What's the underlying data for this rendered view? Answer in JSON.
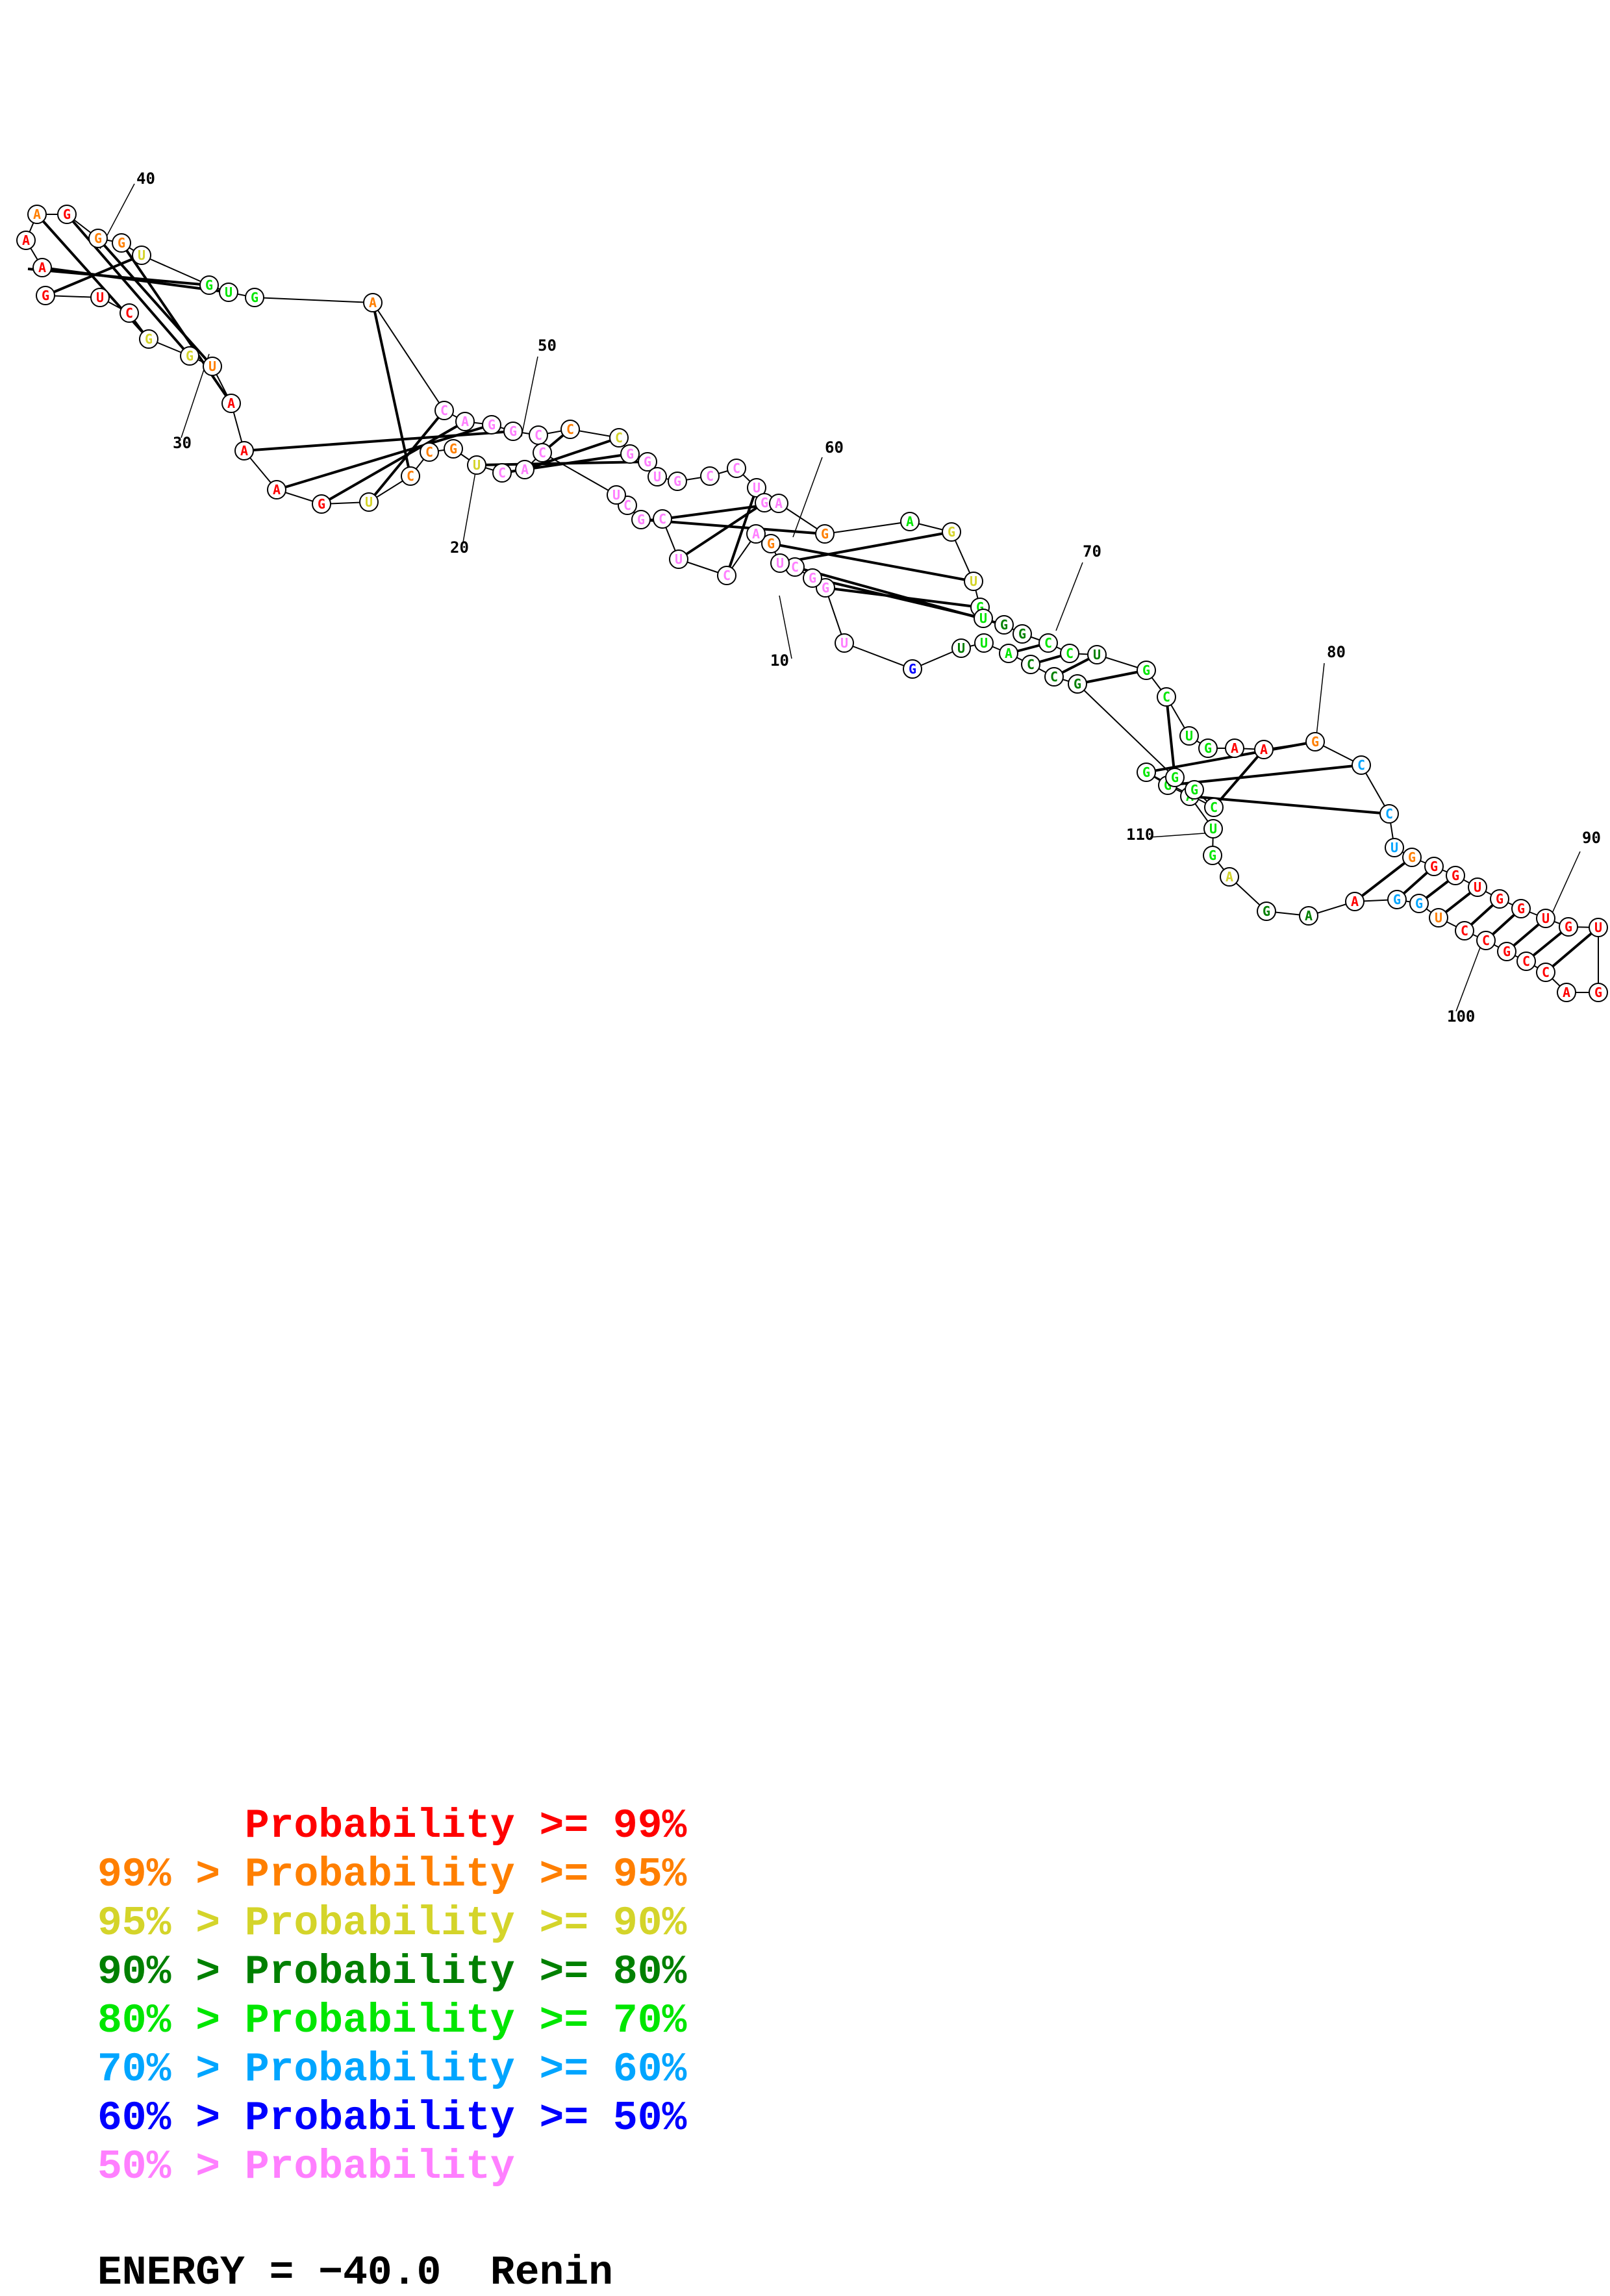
{
  "title_line": {
    "energy_label": "ENERGY = ",
    "energy_value": "−40.0",
    "name": "Renin"
  },
  "position_labels": [
    "10",
    "20",
    "30",
    "40",
    "50",
    "60",
    "70",
    "80",
    "90",
    "100",
    "110"
  ],
  "legend": [
    {
      "text": "      Probability >= 99%",
      "color": "#ff0000"
    },
    {
      "text": "99% > Probability >= 95%",
      "color": "#ff7f00"
    },
    {
      "text": "95% > Probability >= 90%",
      "color": "#d4d42a"
    },
    {
      "text": "90% > Probability >= 80%",
      "color": "#008000"
    },
    {
      "text": "80% > Probability >= 70%",
      "color": "#00e600"
    },
    {
      "text": "70% > Probability >= 60%",
      "color": "#00a5ff"
    },
    {
      "text": "60% > Probability >= 50%",
      "color": "#0000ff"
    },
    {
      "text": "50% > Probability",
      "color": "#ff7fff"
    }
  ],
  "nucleotides": [
    {
      "b": "A",
      "c": "#ff0000"
    },
    {
      "b": "A",
      "c": "#ff0000"
    },
    {
      "b": "A",
      "c": "#ff7f00"
    },
    {
      "b": "G",
      "c": "#ff0000"
    },
    {
      "b": "G",
      "c": "#ff7f00"
    },
    {
      "b": "G",
      "c": "#ff7f00"
    },
    {
      "b": "U",
      "c": "#d4d42a"
    },
    {
      "b": "G",
      "c": "#00e600"
    },
    {
      "b": "U",
      "c": "#00e600"
    },
    {
      "b": "G",
      "c": "#00e600"
    },
    {
      "b": "A",
      "c": "#ff7f00"
    },
    {
      "b": "C",
      "c": "#ff7fff"
    },
    {
      "b": "A",
      "c": "#ff7fff"
    },
    {
      "b": "G",
      "c": "#ff7fff"
    },
    {
      "b": "G",
      "c": "#ff7fff"
    },
    {
      "b": "C",
      "c": "#ff7fff"
    },
    {
      "b": "C",
      "c": "#ff7f00"
    },
    {
      "b": "C",
      "c": "#d4d42a"
    },
    {
      "b": "G",
      "c": "#ff7fff"
    },
    {
      "b": "G",
      "c": "#ff7fff"
    },
    {
      "b": "U",
      "c": "#ff7fff"
    },
    {
      "b": "G",
      "c": "#ff7fff"
    },
    {
      "b": "C",
      "c": "#ff7fff"
    },
    {
      "b": "C",
      "c": "#ff7fff"
    },
    {
      "b": "U",
      "c": "#ff7fff"
    },
    {
      "b": "G",
      "c": "#ff7fff"
    },
    {
      "b": "A",
      "c": "#ff7fff"
    },
    {
      "b": "G",
      "c": "#ff7f00"
    },
    {
      "b": "A",
      "c": "#00e600"
    },
    {
      "b": "G",
      "c": "#d4d42a"
    },
    {
      "b": "U",
      "c": "#d4d42a"
    },
    {
      "b": "G",
      "c": "#00e600"
    },
    {
      "b": "U",
      "c": "#00e600"
    },
    {
      "b": "G",
      "c": "#008000"
    },
    {
      "b": "G",
      "c": "#008000"
    },
    {
      "b": "C",
      "c": "#00e600"
    },
    {
      "b": "C",
      "c": "#00e600"
    },
    {
      "b": "U",
      "c": "#008000"
    },
    {
      "b": "G",
      "c": "#00e600"
    },
    {
      "b": "C",
      "c": "#00e600"
    },
    {
      "b": "U",
      "c": "#00e600"
    },
    {
      "b": "G",
      "c": "#00e600"
    },
    {
      "b": "A",
      "c": "#ff0000"
    },
    {
      "b": "A",
      "c": "#ff0000"
    },
    {
      "b": "G",
      "c": "#ff7f00"
    },
    {
      "b": "C",
      "c": "#00a5ff"
    },
    {
      "b": "C",
      "c": "#00a5ff"
    },
    {
      "b": "U",
      "c": "#00a5ff"
    },
    {
      "b": "G",
      "c": "#ff7f00"
    },
    {
      "b": "G",
      "c": "#ff0000"
    },
    {
      "b": "G",
      "c": "#ff0000"
    },
    {
      "b": "U",
      "c": "#ff0000"
    },
    {
      "b": "G",
      "c": "#ff0000"
    },
    {
      "b": "G",
      "c": "#ff0000"
    },
    {
      "b": "U",
      "c": "#ff0000"
    },
    {
      "b": "G",
      "c": "#ff0000"
    },
    {
      "b": "U",
      "c": "#ff0000"
    },
    {
      "b": "G",
      "c": "#ff0000"
    },
    {
      "b": "A",
      "c": "#ff0000"
    },
    {
      "b": "C",
      "c": "#ff0000"
    },
    {
      "b": "C",
      "c": "#ff0000"
    },
    {
      "b": "G",
      "c": "#ff0000"
    },
    {
      "b": "C",
      "c": "#ff0000"
    },
    {
      "b": "C",
      "c": "#ff0000"
    },
    {
      "b": "U",
      "c": "#ff7f00"
    },
    {
      "b": "G",
      "c": "#00a5ff"
    },
    {
      "b": "G",
      "c": "#00a5ff"
    },
    {
      "b": "A",
      "c": "#ff0000"
    },
    {
      "b": "A",
      "c": "#008000"
    },
    {
      "b": "G",
      "c": "#008000"
    },
    {
      "b": "A",
      "c": "#d4d42a"
    },
    {
      "b": "G",
      "c": "#00e600"
    },
    {
      "b": "U",
      "c": "#00e600"
    },
    {
      "b": "A",
      "c": "#00e600"
    },
    {
      "b": "G",
      "c": "#00e600"
    },
    {
      "b": "G",
      "c": "#00e600"
    },
    {
      "b": "C",
      "c": "#00e600"
    },
    {
      "b": "G",
      "c": "#00e600"
    },
    {
      "b": "G",
      "c": "#00e600"
    },
    {
      "b": "G",
      "c": "#008000"
    },
    {
      "b": "C",
      "c": "#008000"
    },
    {
      "b": "C",
      "c": "#008000"
    },
    {
      "b": "A",
      "c": "#00e600"
    },
    {
      "b": "U",
      "c": "#00e600"
    },
    {
      "b": "U",
      "c": "#008000"
    },
    {
      "b": "G",
      "c": "#0000ff"
    },
    {
      "b": "U",
      "c": "#ff7fff"
    },
    {
      "b": "G",
      "c": "#ff7fff"
    },
    {
      "b": "G",
      "c": "#ff7fff"
    },
    {
      "b": "C",
      "c": "#ff7fff"
    },
    {
      "b": "U",
      "c": "#ff7fff"
    },
    {
      "b": "G",
      "c": "#ff7f00"
    },
    {
      "b": "A",
      "c": "#ff7fff"
    },
    {
      "b": "C",
      "c": "#ff7fff"
    },
    {
      "b": "U",
      "c": "#ff7fff"
    },
    {
      "b": "C",
      "c": "#ff7fff"
    },
    {
      "b": "G",
      "c": "#ff7fff"
    },
    {
      "b": "C",
      "c": "#ff7fff"
    },
    {
      "b": "U",
      "c": "#ff7fff"
    },
    {
      "b": "C",
      "c": "#ff7fff"
    },
    {
      "b": "A",
      "c": "#ff7fff"
    },
    {
      "b": "C",
      "c": "#ff7fff"
    },
    {
      "b": "U",
      "c": "#d4d42a"
    },
    {
      "b": "G",
      "c": "#ff7f00"
    },
    {
      "b": "C",
      "c": "#ff7f00"
    },
    {
      "b": "C",
      "c": "#ff7f00"
    },
    {
      "b": "U",
      "c": "#d4d42a"
    },
    {
      "b": "G",
      "c": "#ff0000"
    },
    {
      "b": "A",
      "c": "#ff0000"
    },
    {
      "b": "A",
      "c": "#ff0000"
    },
    {
      "b": "A",
      "c": "#ff0000"
    },
    {
      "b": "U",
      "c": "#ff7f00"
    },
    {
      "b": "G",
      "c": "#d4d42a"
    },
    {
      "b": "G",
      "c": "#d4d42a"
    },
    {
      "b": "C",
      "c": "#ff0000"
    },
    {
      "b": "U",
      "c": "#ff0000"
    },
    {
      "b": "G",
      "c": "#ff0000"
    }
  ]
}
